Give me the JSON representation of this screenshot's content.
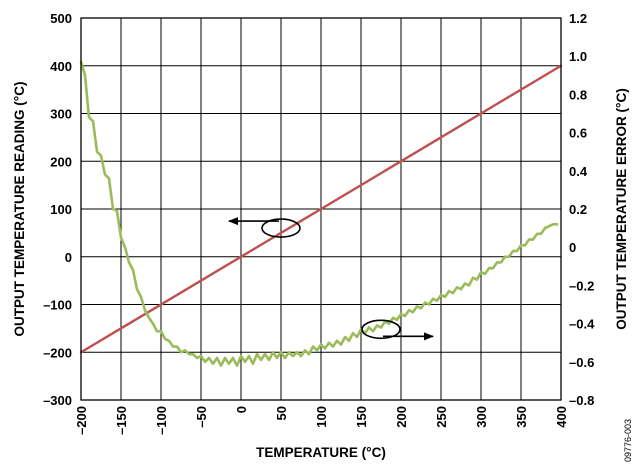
{
  "figure_id": "09776-003",
  "chart_data": {
    "type": "line",
    "xlabel": "TEMPERATURE (°C)",
    "ylabel_left": "OUTPUT TEMPERATURE READING (°C)",
    "ylabel_right": "OUTPUT TEMPERATURE ERROR (°C)",
    "xlim": [
      -200,
      400
    ],
    "ylim_left": [
      -300,
      500
    ],
    "ylim_right": [
      -0.8,
      1.2
    ],
    "x_ticks": [
      -200,
      -150,
      -100,
      -50,
      0,
      50,
      100,
      150,
      200,
      250,
      300,
      350,
      400
    ],
    "x_tick_labels": [
      "–200",
      "–150",
      "–100",
      "–50",
      "0",
      "50",
      "100",
      "150",
      "200",
      "250",
      "300",
      "350",
      "400"
    ],
    "y_left_ticks": [
      -300,
      -200,
      -100,
      0,
      100,
      200,
      300,
      400,
      500
    ],
    "y_left_tick_labels": [
      "–300",
      "–200",
      "–100",
      "0",
      "100",
      "200",
      "300",
      "400",
      "500"
    ],
    "y_right_ticks": [
      -0.8,
      -0.6,
      -0.4,
      -0.2,
      0,
      0.2,
      0.4,
      0.6,
      0.8,
      1.0,
      1.2
    ],
    "y_right_tick_labels": [
      "–0.8",
      "–0.6",
      "–0.4",
      "–0.2",
      "0",
      "0.2",
      "0.4",
      "0.6",
      "0.8",
      "1.0",
      "1.2"
    ],
    "grid": true,
    "series": [
      {
        "axis": "left",
        "color": "#c0504d",
        "x": [
          -200,
          400
        ],
        "y": [
          -200,
          400
        ]
      },
      {
        "axis": "right",
        "color": "#9bbb59",
        "x": [
          -200,
          -195,
          -190,
          -185,
          -180,
          -175,
          -170,
          -165,
          -160,
          -155,
          -150,
          -145,
          -140,
          -135,
          -130,
          -125,
          -120,
          -115,
          -110,
          -105,
          -100,
          -95,
          -90,
          -85,
          -80,
          -75,
          -70,
          -65,
          -60,
          -55,
          -50,
          -45,
          -40,
          -35,
          -30,
          -25,
          -20,
          -15,
          -10,
          -5,
          0,
          5,
          10,
          15,
          20,
          25,
          30,
          35,
          40,
          45,
          50,
          55,
          60,
          65,
          70,
          75,
          80,
          85,
          90,
          95,
          100,
          105,
          110,
          115,
          120,
          125,
          130,
          135,
          140,
          145,
          150,
          155,
          160,
          165,
          170,
          175,
          180,
          185,
          190,
          195,
          200,
          205,
          210,
          215,
          220,
          225,
          230,
          235,
          240,
          245,
          250,
          255,
          260,
          265,
          270,
          275,
          280,
          285,
          290,
          295,
          300,
          305,
          310,
          315,
          320,
          325,
          330,
          335,
          340,
          345,
          350,
          355,
          360,
          365,
          370,
          375,
          380,
          385,
          390,
          395
        ],
        "y": [
          0.97,
          0.9,
          0.68,
          0.66,
          0.5,
          0.48,
          0.38,
          0.36,
          0.2,
          0.19,
          0.05,
          0.0,
          -0.08,
          -0.12,
          -0.22,
          -0.26,
          -0.33,
          -0.37,
          -0.4,
          -0.44,
          -0.44,
          -0.48,
          -0.49,
          -0.52,
          -0.52,
          -0.55,
          -0.54,
          -0.56,
          -0.56,
          -0.58,
          -0.57,
          -0.6,
          -0.58,
          -0.61,
          -0.58,
          -0.62,
          -0.58,
          -0.61,
          -0.58,
          -0.62,
          -0.57,
          -0.6,
          -0.57,
          -0.61,
          -0.56,
          -0.59,
          -0.56,
          -0.59,
          -0.55,
          -0.58,
          -0.55,
          -0.58,
          -0.55,
          -0.57,
          -0.55,
          -0.57,
          -0.54,
          -0.56,
          -0.52,
          -0.54,
          -0.51,
          -0.53,
          -0.5,
          -0.52,
          -0.49,
          -0.51,
          -0.47,
          -0.49,
          -0.45,
          -0.47,
          -0.43,
          -0.45,
          -0.42,
          -0.44,
          -0.41,
          -0.42,
          -0.39,
          -0.4,
          -0.37,
          -0.38,
          -0.35,
          -0.36,
          -0.33,
          -0.34,
          -0.31,
          -0.32,
          -0.29,
          -0.3,
          -0.27,
          -0.28,
          -0.25,
          -0.26,
          -0.23,
          -0.24,
          -0.21,
          -0.22,
          -0.19,
          -0.2,
          -0.16,
          -0.17,
          -0.13,
          -0.14,
          -0.11,
          -0.11,
          -0.08,
          -0.08,
          -0.05,
          -0.05,
          -0.02,
          -0.02,
          0.01,
          0.01,
          0.04,
          0.04,
          0.07,
          0.07,
          0.1,
          0.11,
          0.12,
          0.12
        ]
      }
    ],
    "annotations": [
      {
        "type": "ellipse-arrow",
        "target_axis": "left",
        "arrow_direction": "left",
        "at_x": 50,
        "at_y_left": 60
      },
      {
        "type": "ellipse-arrow",
        "target_axis": "right",
        "arrow_direction": "right",
        "at_x": 175,
        "at_y_right": -0.43
      }
    ]
  }
}
